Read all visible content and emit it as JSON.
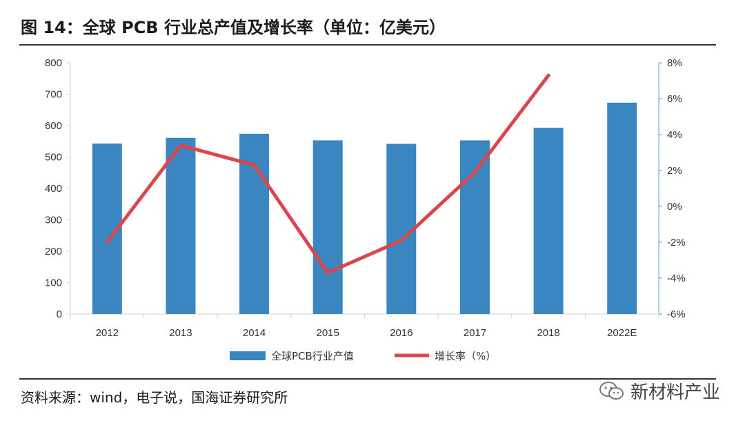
{
  "header": {
    "title": "图 14：全球 PCB 行业总产值及增长率（单位：亿美元）"
  },
  "footer": {
    "source": "资料来源：wind，电子说，国海证券研究所",
    "watermark": "新材料产业",
    "watermark_icon": "wechat-icon"
  },
  "colors": {
    "bar": "#3a86c0",
    "line": "#d9474a",
    "axis": "#d0d0d0",
    "right_axis": "#5a9fb8"
  },
  "chart_data": {
    "type": "bar",
    "categories": [
      "2012",
      "2013",
      "2014",
      "2015",
      "2016",
      "2017",
      "2018",
      "2022E"
    ],
    "series": [
      {
        "name": "全球PCB行业产值",
        "type": "bar",
        "axis": "left",
        "values": [
          543,
          561,
          574,
          553,
          542,
          553,
          593,
          673
        ]
      },
      {
        "name": "增长率（%）",
        "type": "line",
        "axis": "right",
        "values": [
          -2.0,
          3.4,
          2.3,
          -3.7,
          -1.9,
          1.9,
          7.3,
          null
        ]
      }
    ],
    "y_left": {
      "min": 0,
      "max": 800,
      "ticks": [
        0,
        100,
        200,
        300,
        400,
        500,
        600,
        700,
        800
      ],
      "tick_labels": [
        "0",
        "100",
        "200",
        "300",
        "400",
        "500",
        "600",
        "700",
        "800"
      ]
    },
    "y_right": {
      "min": -6,
      "max": 8,
      "ticks": [
        -6,
        -4,
        -2,
        0,
        2,
        4,
        6,
        8
      ],
      "tick_labels": [
        "-6%",
        "-4%",
        "-2%",
        "0%",
        "2%",
        "4%",
        "6%",
        "8%"
      ]
    },
    "grid": false,
    "legend_position": "bottom"
  }
}
